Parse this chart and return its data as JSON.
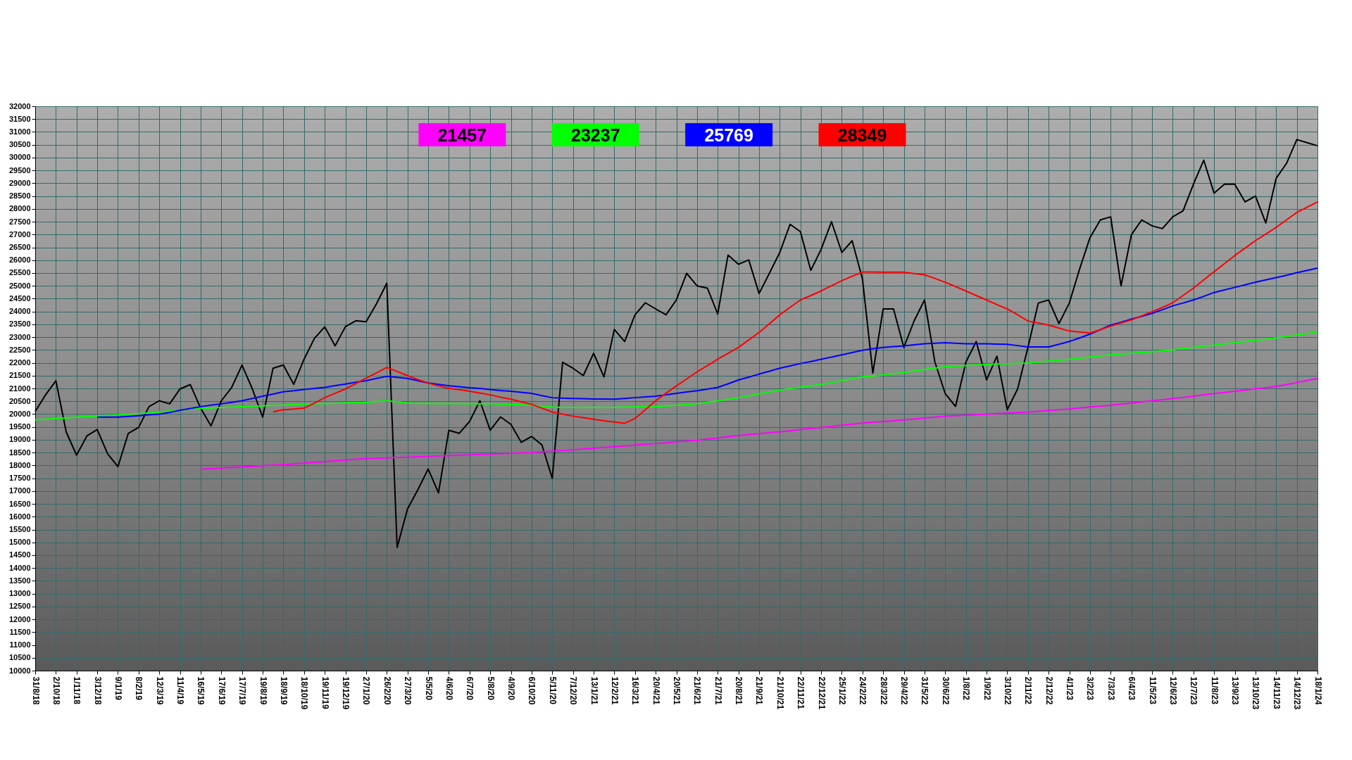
{
  "chart_data": {
    "type": "line",
    "categories": [
      "31/8/18",
      null,
      "2/10/18",
      null,
      "1/11/18",
      null,
      "3/12/18",
      null,
      "9/1/19",
      null,
      "8/2/19",
      null,
      "12/3/19",
      null,
      "11/4/19",
      null,
      "16/5/19",
      null,
      "17/6/19",
      null,
      "17/7/19",
      null,
      "19/8/19",
      null,
      "18/9/19",
      null,
      "18/10/19",
      null,
      "19/11/19",
      null,
      "19/12/19",
      null,
      "27/1/20",
      null,
      "26/2/20",
      null,
      "27/3/20",
      null,
      "5/5/20",
      null,
      "4/6/20",
      null,
      "6/7/20",
      null,
      "5/8/20",
      null,
      "4/9/20",
      null,
      "6/10/20",
      null,
      "5/11/20",
      null,
      "7/12/20",
      null,
      "13/1/21",
      null,
      "12/2/21",
      null,
      "16/3/21",
      null,
      "20/4/21",
      null,
      "20/5/21",
      null,
      "21/6/21",
      null,
      "21/7/21",
      null,
      "20/8/21",
      null,
      "21/9/21",
      null,
      "21/10/21",
      null,
      "22/11/21",
      null,
      "22/12/21",
      null,
      "25/1/22",
      null,
      "24/2/22",
      null,
      "28/3/22",
      null,
      "29/4/22",
      null,
      "31/5/22",
      null,
      "30/6/22",
      null,
      "1/8/22",
      null,
      "1/9/22",
      null,
      "3/10/22",
      null,
      "2/11/22",
      null,
      "2/12/22",
      null,
      "4/1/23",
      null,
      "3/2/23",
      null,
      "7/3/23",
      null,
      "6/4/23",
      null,
      "11/5/23",
      null,
      "12/6/23",
      null,
      "12/7/23",
      null,
      "11/8/23",
      null,
      "13/9/23",
      null,
      "13/10/23",
      null,
      "14/11/23",
      null,
      "14/12/23",
      null,
      "18/1/24"
    ],
    "series": [
      {
        "color": "#000000",
        "values": [
          20100,
          20750,
          21300,
          19300,
          18400,
          19150,
          19400,
          18450,
          17950,
          19250,
          19480,
          20290,
          20520,
          20400,
          20980,
          21150,
          20230,
          19540,
          20520,
          21040,
          21910,
          20980,
          19880,
          21790,
          21910,
          21160,
          22140,
          22950,
          23400,
          22660,
          23410,
          23640,
          23600,
          24300,
          25100,
          14800,
          16300,
          17050,
          17860,
          16930,
          19370,
          19250,
          19710,
          20520,
          19370,
          19890,
          19600,
          18900,
          19130,
          18800,
          17500,
          22020,
          21790,
          21500,
          22370,
          21450,
          23300,
          22830,
          23870,
          24340,
          24100,
          23870,
          24450,
          25490,
          25000,
          24910,
          23900,
          26200,
          25840,
          26010,
          24700,
          25490,
          26300,
          27400,
          27110,
          25600,
          26420,
          27500,
          26300,
          26760,
          25260,
          21600,
          24100,
          24100,
          22600,
          23640,
          24450,
          22030,
          20800,
          20300,
          22030,
          22830,
          21330,
          22260,
          20170,
          20980,
          22600,
          24330,
          24450,
          23530,
          24330,
          25660,
          26880,
          27570,
          27690,
          25000,
          26990,
          27570,
          27340,
          27230,
          27690,
          27920,
          28960,
          29900,
          28610,
          28960,
          28960,
          28270,
          28500,
          27450,
          29190,
          29770,
          30700,
          30580,
          30460
        ]
      },
      {
        "color": "#ff00ff",
        "values": [
          null,
          null,
          null,
          null,
          null,
          null,
          null,
          null,
          null,
          null,
          null,
          null,
          null,
          null,
          null,
          null,
          17850,
          17870,
          17900,
          17920,
          17940,
          17960,
          17990,
          18010,
          18030,
          18060,
          18090,
          18120,
          18150,
          18180,
          18210,
          18240,
          18270,
          18280,
          18300,
          18310,
          18320,
          18340,
          18350,
          18370,
          18380,
          18400,
          18410,
          18430,
          18440,
          18460,
          18470,
          18490,
          18500,
          18530,
          18560,
          18580,
          18610,
          18640,
          18670,
          18700,
          18730,
          18760,
          18790,
          18820,
          18850,
          18880,
          18920,
          18950,
          18980,
          19030,
          19070,
          19120,
          19160,
          19200,
          19240,
          19270,
          19310,
          19350,
          19400,
          19440,
          19480,
          19520,
          19570,
          19610,
          19650,
          19680,
          19710,
          19740,
          19770,
          19810,
          19850,
          19880,
          19920,
          19940,
          19960,
          19980,
          20000,
          20020,
          20040,
          20060,
          20080,
          20110,
          20140,
          20170,
          20200,
          20240,
          20280,
          20310,
          20350,
          20390,
          20430,
          20480,
          20520,
          20560,
          20610,
          20650,
          20700,
          20750,
          20800,
          20840,
          20890,
          20940,
          20990,
          21030,
          21080,
          21150,
          21230,
          21310,
          21390
        ]
      },
      {
        "color": "#00ff00",
        "values": [
          19770,
          19800,
          19830,
          19850,
          19880,
          19900,
          19920,
          19950,
          19970,
          20000,
          20020,
          20050,
          20080,
          20120,
          20150,
          20190,
          20230,
          20240,
          20260,
          20270,
          20290,
          20300,
          20320,
          20340,
          20350,
          20370,
          20380,
          20400,
          20410,
          20420,
          20440,
          20450,
          20460,
          20490,
          20520,
          20480,
          20430,
          20420,
          20420,
          20410,
          20410,
          20410,
          20400,
          20400,
          20400,
          20380,
          20370,
          20360,
          20350,
          20310,
          20270,
          20260,
          20260,
          20260,
          20260,
          20260,
          20260,
          20270,
          20280,
          20290,
          20290,
          20320,
          20340,
          20370,
          20400,
          20460,
          20520,
          20580,
          20640,
          20710,
          20790,
          20860,
          20930,
          20990,
          21050,
          21100,
          21160,
          21230,
          21300,
          21380,
          21450,
          21490,
          21530,
          21580,
          21620,
          21680,
          21740,
          21790,
          21850,
          21870,
          21890,
          21910,
          21930,
          21950,
          21960,
          21980,
          21990,
          22030,
          22070,
          22100,
          22140,
          22180,
          22230,
          22270,
          22310,
          22340,
          22370,
          22400,
          22430,
          22470,
          22510,
          22560,
          22600,
          22650,
          22690,
          22740,
          22780,
          22830,
          22880,
          22920,
          22970,
          23030,
          23090,
          23140,
          23200
        ]
      },
      {
        "color": "#0000ff",
        "values": [
          null,
          null,
          null,
          null,
          null,
          null,
          19880,
          19880,
          19880,
          19910,
          19940,
          19970,
          20000,
          20070,
          20150,
          20220,
          20290,
          20350,
          20400,
          20460,
          20520,
          20610,
          20700,
          20780,
          20870,
          20910,
          20960,
          21000,
          21040,
          21110,
          21170,
          21240,
          21300,
          21390,
          21470,
          21430,
          21390,
          21300,
          21210,
          21160,
          21100,
          21070,
          21030,
          21000,
          20960,
          20920,
          20890,
          20850,
          20810,
          20720,
          20640,
          20620,
          20610,
          20600,
          20590,
          20590,
          20580,
          20610,
          20640,
          20670,
          20700,
          20750,
          20810,
          20860,
          20910,
          20970,
          21040,
          21180,
          21330,
          21440,
          21560,
          21670,
          21790,
          21880,
          21970,
          22050,
          22140,
          22220,
          22310,
          22400,
          22490,
          22550,
          22600,
          22630,
          22660,
          22700,
          22740,
          22760,
          22780,
          22760,
          22740,
          22740,
          22740,
          22730,
          22720,
          22670,
          22620,
          22620,
          22620,
          22720,
          22830,
          22970,
          23120,
          23290,
          23470,
          23580,
          23700,
          23810,
          23930,
          24070,
          24220,
          24330,
          24450,
          24590,
          24740,
          24840,
          24940,
          25040,
          25140,
          25230,
          25320,
          25410,
          25510,
          25600,
          25690
        ]
      },
      {
        "color": "#ff0000",
        "values": [
          null,
          null,
          null,
          null,
          null,
          null,
          null,
          null,
          null,
          null,
          null,
          null,
          null,
          null,
          null,
          null,
          null,
          null,
          null,
          null,
          null,
          null,
          null,
          20090,
          20170,
          20200,
          20230,
          20430,
          20640,
          20810,
          20980,
          21190,
          21400,
          21610,
          21820,
          21660,
          21500,
          21350,
          21210,
          21100,
          21000,
          20950,
          20890,
          20820,
          20750,
          20660,
          20580,
          20480,
          20380,
          20230,
          20080,
          20000,
          19920,
          19860,
          19800,
          19740,
          19690,
          19640,
          19830,
          20170,
          20520,
          20810,
          21100,
          21370,
          21650,
          21890,
          22140,
          22370,
          22600,
          22890,
          23180,
          23520,
          23870,
          24160,
          24450,
          24620,
          24800,
          25000,
          25200,
          25370,
          25540,
          25540,
          25530,
          25530,
          25530,
          25480,
          25430,
          25290,
          25140,
          24970,
          24800,
          24620,
          24450,
          24270,
          24100,
          23870,
          23630,
          23550,
          23470,
          23350,
          23240,
          23200,
          23160,
          23290,
          23430,
          23550,
          23670,
          23830,
          23990,
          24160,
          24340,
          24620,
          24910,
          25230,
          25550,
          25860,
          26180,
          26470,
          26760,
          27020,
          27280,
          27570,
          27860,
          28070,
          28270
        ]
      }
    ],
    "ylim": [
      10000,
      32000
    ],
    "yticks": [
      10000,
      10500,
      11000,
      11500,
      12000,
      12500,
      13000,
      13500,
      14000,
      14500,
      15000,
      15500,
      16000,
      16500,
      17000,
      17500,
      18000,
      18500,
      19000,
      19500,
      20000,
      20500,
      21000,
      21500,
      22000,
      22500,
      23000,
      23500,
      24000,
      24500,
      25000,
      25500,
      26000,
      26500,
      27000,
      27500,
      28000,
      28500,
      29000,
      29500,
      30000,
      30500,
      31000,
      31500,
      32000
    ],
    "grid": true,
    "annotations": [
      "21457",
      "23237",
      "25769",
      "28349"
    ]
  }
}
